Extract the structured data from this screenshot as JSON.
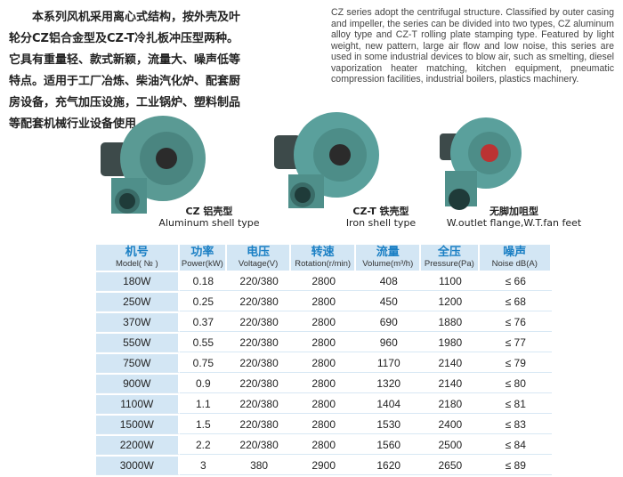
{
  "intro": {
    "cn": "本系列风机采用离心式结构，按外壳及叶轮分CZ铝合金型及CZ-T冷扎板冲压型两种。它具有重量轻、款式新颖，流量大、噪声低等特点。适用于工厂冶炼、柴油汽化炉、配套厨房设备，充气加压设施，工业锅炉、塑料制品等配套机械行业设备使用。",
    "en": "CZ series adopt the centrifugal structure. Classified by outer casing and impeller, the series can be divided into two types, CZ aluminum alloy type and CZ-T rolling plate stamping type. Featured by light weight, new pattern, large air flow and low noise, this series are used in some industrial devices to blow air, such as smelting, diesel vaporization heater matching, kitchen equipment, pneumatic compression facilities, industrial boilers, plastics machinery."
  },
  "products": [
    {
      "title": "CZ 铝壳型",
      "subtitle": "Aluminum shell type"
    },
    {
      "title": "CZ-T 铁壳型",
      "subtitle": "Iron shell type"
    },
    {
      "title": "无脚加咀型",
      "subtitle": "W.outlet flange,W.T.fan feet"
    }
  ],
  "colors": {
    "fan": "#4f8f8a",
    "header_bg": "#d3e6f4",
    "header_text": "#1a7fc4"
  },
  "table": {
    "headers": [
      {
        "cn": "机号",
        "en": "Model( № )"
      },
      {
        "cn": "功率",
        "en": "Power(kW)"
      },
      {
        "cn": "电压",
        "en": "Voltage(V)"
      },
      {
        "cn": "转速",
        "en": "Rotation(r/min)"
      },
      {
        "cn": "流量",
        "en": "Volume(m³/h)"
      },
      {
        "cn": "全压",
        "en": "Pressure(Pa)"
      },
      {
        "cn": "噪声",
        "en": "Noise dB(A)"
      }
    ],
    "rows": [
      [
        "180W",
        "0.18",
        "220/380",
        "2800",
        "408",
        "1100",
        "≤ 66"
      ],
      [
        "250W",
        "0.25",
        "220/380",
        "2800",
        "450",
        "1200",
        "≤ 68"
      ],
      [
        "370W",
        "0.37",
        "220/380",
        "2800",
        "690",
        "1880",
        "≤ 76"
      ],
      [
        "550W",
        "0.55",
        "220/380",
        "2800",
        "960",
        "1980",
        "≤ 77"
      ],
      [
        "750W",
        "0.75",
        "220/380",
        "2800",
        "1170",
        "2140",
        "≤ 79"
      ],
      [
        "900W",
        "0.9",
        "220/380",
        "2800",
        "1320",
        "2140",
        "≤ 80"
      ],
      [
        "1100W",
        "1.1",
        "220/380",
        "2800",
        "1404",
        "2180",
        "≤ 81"
      ],
      [
        "1500W",
        "1.5",
        "220/380",
        "2800",
        "1530",
        "2400",
        "≤ 83"
      ],
      [
        "2200W",
        "2.2",
        "220/380",
        "2800",
        "1560",
        "2500",
        "≤ 84"
      ],
      [
        "3000W",
        "3",
        "380",
        "2900",
        "1620",
        "2650",
        "≤ 89"
      ]
    ]
  }
}
